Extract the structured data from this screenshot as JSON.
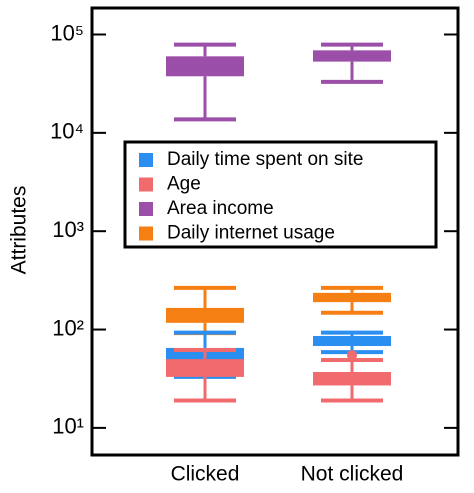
{
  "chart_data": {
    "type": "box",
    "y_label": "Attributes",
    "categories": [
      "Clicked",
      "Not clicked"
    ],
    "log_scale_y": true,
    "ylim": [
      5.3,
      186000
    ],
    "yticks": [
      {
        "value": 10,
        "label": "10¹"
      },
      {
        "value": 100,
        "label": "10²"
      },
      {
        "value": 1000,
        "label": "10³"
      },
      {
        "value": 10000,
        "label": "10⁴"
      },
      {
        "value": 100000,
        "label": "10⁵"
      }
    ],
    "legend_position": "center",
    "series": [
      {
        "name": "Daily time spent on site",
        "color": "#2a8ff0",
        "values": [
          {
            "low": 33,
            "q1": 49,
            "median": 56,
            "q3": 65,
            "high": 93
          },
          {
            "low": 59,
            "q1": 68,
            "median": 77,
            "q3": 86,
            "high": 93
          }
        ],
        "outliers": [
          [],
          []
        ]
      },
      {
        "name": "Age",
        "color": "#f06a6e",
        "values": [
          {
            "low": 19,
            "q1": 33,
            "median": 42,
            "q3": 50,
            "high": 62
          },
          {
            "low": 19,
            "q1": 27,
            "median": 31,
            "q3": 37,
            "high": 49
          }
        ],
        "outliers": [
          [],
          [
            55
          ]
        ]
      },
      {
        "name": "Area income",
        "color": "#9b4fa8",
        "values": [
          {
            "low": 13700,
            "q1": 37600,
            "median": 46000,
            "q3": 60000,
            "high": 79000
          },
          {
            "low": 33000,
            "q1": 53000,
            "median": 60000,
            "q3": 69000,
            "high": 79000
          }
        ],
        "outliers": [
          [],
          []
        ]
      },
      {
        "name": "Daily internet usage",
        "color": "#f57f12",
        "values": [
          {
            "low": 92,
            "q1": 117,
            "median": 140,
            "q3": 166,
            "high": 265
          },
          {
            "low": 148,
            "q1": 190,
            "median": 214,
            "q3": 236,
            "high": 265
          }
        ],
        "outliers": [
          [],
          []
        ]
      }
    ]
  }
}
